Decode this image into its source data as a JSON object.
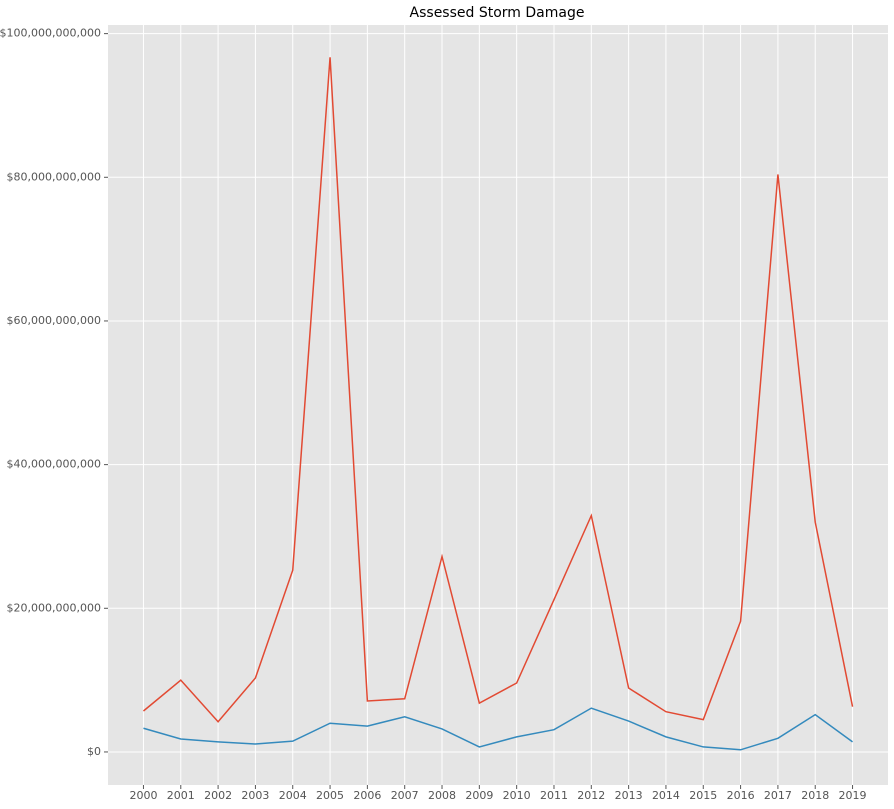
{
  "chart_data": {
    "type": "line",
    "title": "Assessed Storm Damage",
    "x": [
      2000,
      2001,
      2002,
      2003,
      2004,
      2005,
      2006,
      2007,
      2008,
      2009,
      2010,
      2011,
      2012,
      2013,
      2014,
      2015,
      2016,
      2017,
      2018,
      2019
    ],
    "series": [
      {
        "color": "#E24A33",
        "values": [
          5700000000,
          10000000000,
          4200000000,
          10300000000,
          25300000000,
          96700000000,
          7100000000,
          7400000000,
          27200000000,
          6800000000,
          9600000000,
          21200000000,
          32900000000,
          8900000000,
          5600000000,
          4500000000,
          18200000000,
          80400000000,
          32000000000,
          6300000000
        ]
      },
      {
        "color": "#348ABD",
        "values": [
          3300000000,
          1800000000,
          1400000000,
          1100000000,
          1500000000,
          4000000000,
          3600000000,
          4900000000,
          3200000000,
          700000000,
          2100000000,
          3100000000,
          6100000000,
          4300000000,
          2100000000,
          700000000,
          300000000,
          1900000000,
          5200000000,
          1400000000
        ]
      }
    ],
    "xlim": [
      1999.05,
      2019.95
    ],
    "xticks": [
      2000,
      2001,
      2002,
      2003,
      2004,
      2005,
      2006,
      2007,
      2008,
      2009,
      2010,
      2011,
      2012,
      2013,
      2014,
      2015,
      2016,
      2017,
      2018,
      2019
    ],
    "ylim": [
      -4600000000,
      101200000000
    ],
    "yticks": [
      {
        "value": 0,
        "label": "$0"
      },
      {
        "value": 20000000000,
        "label": "$20,000,000,000"
      },
      {
        "value": 40000000000,
        "label": "$40,000,000,000"
      },
      {
        "value": 60000000000,
        "label": "$60,000,000,000"
      },
      {
        "value": 80000000000,
        "label": "$80,000,000,000"
      },
      {
        "value": 100000000000,
        "label": "$100,000,000,000"
      }
    ],
    "grid": true,
    "background": "#E5E5E5"
  }
}
